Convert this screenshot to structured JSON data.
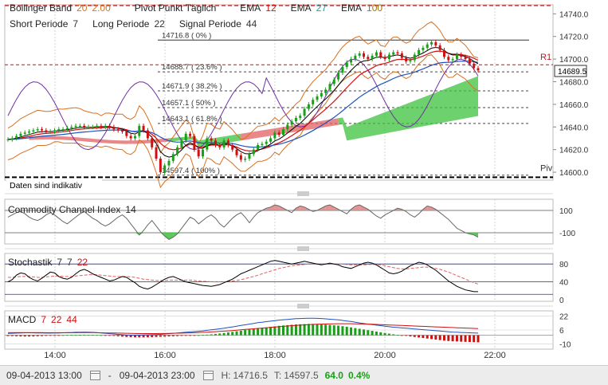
{
  "header": {
    "bollinger": {
      "name": "Bollinger Band",
      "p1": "20",
      "p2": "2.00"
    },
    "pivot": "Pivot Punkt Täglich",
    "ema": [
      {
        "name": "EMA",
        "value": "12"
      },
      {
        "name": "EMA",
        "value": "27"
      },
      {
        "name": "EMA",
        "value": "100"
      }
    ],
    "short": {
      "name": "Short Periode",
      "value": "7"
    },
    "long": {
      "name": "Long Periode",
      "value": "22"
    },
    "signal": {
      "name": "Signal Periode",
      "value": "44"
    }
  },
  "colors": {
    "up": "#18a018",
    "down": "#d01010",
    "bollinger": "#7030a0",
    "ema12": "#d01010",
    "ema27": "#2050c0",
    "ema100": "#d87020",
    "cloud_green": "#3cc23c",
    "cloud_red": "#e06060",
    "cci_up": "#e08080",
    "cci_down": "#40c040"
  },
  "chart_data": [
    {
      "type": "candlestick",
      "name": "price",
      "x_tick_labels": [
        "14:00",
        "16:00",
        "18:00",
        "20:00",
        "22:00"
      ],
      "y_tick_labels": [
        "14740.0",
        "14720.0",
        "14700.0",
        "14680.0",
        "14660.0",
        "14640.0",
        "14620.0",
        "14600.0"
      ],
      "ylim": [
        14593,
        14748
      ],
      "last_price": "14689.5",
      "note": "Daten sind indikativ",
      "pivot_label": "Piv",
      "r1_label": "R1",
      "r1_value": 14695,
      "pivot_value": 14597,
      "fibonacci": [
        {
          "label": "14716.8 ( 0% )",
          "value": 14716.8
        },
        {
          "label": "14688.7 ( 23.6% )",
          "value": 14688.7
        },
        {
          "label": "14671.9 ( 38.2% )",
          "value": 14671.9
        },
        {
          "label": "14657.1 ( 50% )",
          "value": 14657.1
        },
        {
          "label": "14643.1 ( 61.8% )",
          "value": 14643.1
        },
        {
          "label": "14597.4 ( 100% )",
          "value": 14597.4
        }
      ],
      "close": [
        14629,
        14630,
        14632,
        14634,
        14635,
        14636,
        14637,
        14638,
        14637,
        14636,
        14636,
        14637,
        14638,
        14638,
        14639,
        14640,
        14641,
        14641,
        14640,
        14640,
        14640,
        14641,
        14640,
        14641,
        14640,
        14638,
        14637,
        14636,
        14632,
        14630,
        14632,
        14641,
        14637,
        14630,
        14622,
        14612,
        14600,
        14606,
        14610,
        14616,
        14622,
        14628,
        14634,
        14632,
        14620,
        14614,
        14620,
        14630,
        14628,
        14624,
        14622,
        14628,
        14624,
        14620,
        14615,
        14611,
        14612,
        14616,
        14620,
        14624,
        14625,
        14627,
        14630,
        14635,
        14633,
        14638,
        14642,
        14645,
        14648,
        14650,
        14656,
        14660,
        14664,
        14667,
        14670,
        14673,
        14678,
        14682,
        14688,
        14693,
        14697,
        14700,
        14703,
        14705,
        14702,
        14700,
        14703,
        14706,
        14702,
        14700,
        14704,
        14706,
        14705,
        14701,
        14698,
        14699,
        14704,
        14708,
        14710,
        14713,
        14715,
        14712,
        14708,
        14702,
        14699,
        14700,
        14704,
        14702,
        14700,
        14696,
        14692,
        14690
      ],
      "cloud": [
        0,
        0,
        0,
        0,
        0,
        0,
        0,
        0,
        0,
        0,
        0,
        0,
        0,
        0,
        0,
        0,
        0,
        0,
        0,
        0,
        0,
        0,
        0,
        0,
        0,
        0,
        0,
        0,
        0,
        0,
        0,
        0,
        0,
        0,
        0,
        0,
        0,
        0,
        0,
        0,
        0,
        0,
        0,
        0,
        0,
        0,
        0,
        0,
        0,
        0,
        0,
        0,
        0,
        0,
        0,
        0,
        0,
        0,
        0,
        0,
        0,
        0,
        0,
        0,
        0,
        0,
        0,
        0,
        0,
        0,
        0,
        0,
        0,
        0,
        0,
        0,
        0,
        0,
        0,
        0,
        0,
        0,
        0,
        0,
        0,
        0,
        0,
        0,
        0,
        0,
        0,
        0,
        0,
        0,
        0,
        0,
        0,
        0,
        0,
        0,
        0,
        0,
        0,
        0,
        0,
        0,
        0,
        0,
        0,
        0,
        0,
        0
      ]
    },
    {
      "type": "area",
      "name": "Commodity Channel Index",
      "period": "14",
      "y_tick_labels": [
        "100",
        "-100"
      ],
      "ylim": [
        -200,
        200
      ],
      "values": [
        40,
        60,
        80,
        90,
        70,
        40,
        20,
        10,
        30,
        60,
        80,
        60,
        30,
        0,
        -20,
        10,
        40,
        70,
        90,
        60,
        30,
        10,
        -20,
        -40,
        -20,
        10,
        40,
        60,
        30,
        -20,
        -70,
        -120,
        -80,
        -30,
        10,
        -40,
        -90,
        -130,
        -160,
        -140,
        -110,
        -60,
        -10,
        40,
        20,
        -20,
        10,
        40,
        60,
        30,
        -20,
        -50,
        -10,
        30,
        60,
        80,
        40,
        -10,
        40,
        80,
        100,
        120,
        130,
        150,
        140,
        120,
        100,
        80,
        120,
        140,
        130,
        110,
        90,
        100,
        120,
        140,
        150,
        130,
        110,
        90,
        70,
        110,
        140,
        150,
        130,
        110,
        80,
        50,
        30,
        60,
        80,
        100,
        120,
        110,
        90,
        60,
        40,
        70,
        110,
        140,
        130,
        110,
        80,
        50,
        20,
        -20,
        -60,
        -80,
        -100,
        -110,
        -120,
        -140
      ]
    },
    {
      "type": "line",
      "name": "Stochastik",
      "params": [
        "7",
        "7",
        "22"
      ],
      "y_tick_labels": [
        "80",
        "40",
        "0"
      ],
      "ylim": [
        0,
        100
      ],
      "k": [
        40,
        45,
        55,
        60,
        58,
        50,
        45,
        42,
        48,
        55,
        62,
        60,
        52,
        48,
        46,
        50,
        58,
        65,
        68,
        64,
        58,
        54,
        50,
        46,
        42,
        44,
        48,
        52,
        50,
        44,
        38,
        30,
        26,
        24,
        28,
        34,
        40,
        46,
        50,
        52,
        48,
        44,
        40,
        38,
        36,
        34,
        32,
        31,
        30,
        32,
        34,
        38,
        42,
        46,
        52,
        58,
        62,
        66,
        70,
        74,
        78,
        82,
        86,
        88,
        86,
        84,
        82,
        80,
        82,
        84,
        86,
        84,
        82,
        80,
        78,
        80,
        82,
        80,
        78,
        74,
        72,
        70,
        74,
        78,
        82,
        84,
        82,
        78,
        72,
        66,
        60,
        58,
        60,
        64,
        70,
        76,
        80,
        84,
        82,
        78,
        72,
        66,
        58,
        50,
        42,
        36,
        30,
        26,
        22,
        20,
        18,
        18
      ],
      "d": [
        50,
        50,
        51,
        52,
        52,
        52,
        51,
        50,
        50,
        51,
        52,
        53,
        53,
        52,
        52,
        52,
        53,
        54,
        55,
        56,
        56,
        56,
        55,
        54,
        53,
        52,
        52,
        52,
        52,
        51,
        50,
        48,
        46,
        45,
        44,
        43,
        43,
        43,
        44,
        44,
        44,
        44,
        44,
        44,
        43,
        42,
        41,
        41,
        40,
        40,
        40,
        40,
        41,
        42,
        43,
        45,
        47,
        50,
        52,
        55,
        58,
        61,
        64,
        67,
        70,
        72,
        74,
        76,
        77,
        78,
        79,
        80,
        80,
        80,
        80,
        80,
        80,
        80,
        80,
        80,
        79,
        78,
        78,
        78,
        78,
        79,
        79,
        79,
        78,
        76,
        74,
        72,
        70,
        69,
        69,
        70,
        71,
        72,
        73,
        73,
        72,
        70,
        68,
        65,
        62,
        58,
        54,
        50,
        46,
        42,
        38,
        35
      ]
    },
    {
      "type": "bar",
      "name": "MACD",
      "params": [
        "7",
        "22",
        "44"
      ],
      "y_tick_labels": [
        "22",
        "6",
        "-10"
      ],
      "ylim": [
        -16,
        28
      ],
      "hist": [
        -1,
        -1,
        -1.2,
        -1.4,
        -1.5,
        -1.5,
        -1.4,
        -1.2,
        -1,
        -0.8,
        -0.6,
        -0.4,
        -0.2,
        0,
        0.2,
        0.3,
        0.4,
        0.5,
        0.6,
        0.5,
        0.4,
        0.2,
        0,
        -0.2,
        -0.5,
        -0.8,
        -1.2,
        -1.6,
        -2,
        -2.2,
        -2.4,
        -2.5,
        -2.5,
        -2.4,
        -2.2,
        -2,
        -1.8,
        -1.6,
        -1.4,
        -1.2,
        -1,
        -0.8,
        -0.6,
        -0.4,
        -0.2,
        0,
        0.3,
        0.6,
        1,
        1.5,
        2,
        2.6,
        3.2,
        3.8,
        4.5,
        5.2,
        6,
        6.6,
        7.2,
        7.8,
        8.4,
        9,
        9.6,
        10.2,
        10.8,
        11.2,
        11.6,
        12,
        12.4,
        12.6,
        12.8,
        13,
        13,
        12.8,
        12.6,
        12.2,
        11.8,
        11.4,
        11,
        10.4,
        9.8,
        9,
        8.2,
        7.4,
        6.6,
        5.8,
        5,
        4.2,
        3.4,
        2.6,
        1.8,
        1,
        0.4,
        -0.2,
        -0.8,
        -1.4,
        -2,
        -2.6,
        -3.2,
        -3.8,
        -4.4,
        -5,
        -5.6,
        -6.2,
        -6.6,
        -7,
        -7.2,
        -7.4,
        -7.6,
        -7.8,
        -8,
        -8.2
      ],
      "macd": [
        2,
        2.2,
        2.4,
        2.6,
        2.8,
        2.8,
        2.7,
        2.6,
        2.5,
        2.4,
        2.4,
        2.5,
        2.6,
        2.8,
        3,
        3.2,
        3.4,
        3.5,
        3.6,
        3.5,
        3.3,
        3,
        2.6,
        2.2,
        1.8,
        1.4,
        1,
        0.6,
        0.2,
        0,
        0,
        0,
        0.2,
        0.4,
        0.6,
        0.8,
        1,
        1.4,
        1.8,
        2.2,
        2.6,
        3,
        3.4,
        3.8,
        4.2,
        4.6,
        5,
        5.6,
        6.2,
        6.8,
        7.4,
        8,
        8.8,
        9.6,
        10.4,
        11.2,
        12,
        12.8,
        13.6,
        14.4,
        15,
        15.6,
        16.2,
        16.8,
        17.4,
        17.8,
        18.2,
        18.6,
        19,
        19.2,
        19.4,
        19.6,
        19.6,
        19.4,
        19.2,
        18.8,
        18.4,
        18,
        17.6,
        17,
        16.4,
        15.8,
        15,
        14.2,
        13.4,
        12.8,
        12.2,
        11.6,
        11,
        10.4,
        9.8,
        9.2,
        8.8,
        8.4,
        8,
        7.6,
        7.2,
        6.8,
        6.4,
        6,
        5.6,
        5.2,
        4.8,
        4.4,
        4,
        3.6,
        3.4,
        3.2,
        3,
        2.8,
        2.6,
        2.4
      ],
      "signal": [
        3,
        3,
        3,
        3,
        3,
        3,
        3,
        3,
        3,
        2.9,
        2.9,
        2.9,
        2.9,
        2.9,
        2.9,
        2.9,
        2.9,
        3,
        3,
        3,
        3,
        2.9,
        2.8,
        2.7,
        2.6,
        2.5,
        2.4,
        2.3,
        2.2,
        2.1,
        2,
        1.9,
        1.9,
        1.9,
        1.9,
        1.9,
        2,
        2,
        2.1,
        2.2,
        2.3,
        2.4,
        2.5,
        2.7,
        2.9,
        3.1,
        3.3,
        3.5,
        3.8,
        4.1,
        4.4,
        4.7,
        5,
        5.4,
        5.8,
        6.2,
        6.6,
        7,
        7.4,
        7.8,
        8.2,
        8.6,
        9,
        9.4,
        9.8,
        10.2,
        10.6,
        11,
        11.3,
        11.6,
        11.9,
        12.2,
        12.4,
        12.6,
        12.8,
        12.9,
        13,
        13.1,
        13.2,
        13.2,
        13.2,
        13.2,
        13.1,
        13,
        12.9,
        12.8,
        12.6,
        12.4,
        12.2,
        12,
        11.8,
        11.6,
        11.4,
        11.2,
        11,
        10.8,
        10.6,
        10.4,
        10.2,
        10,
        9.8,
        9.6,
        9.4,
        9.2,
        9,
        8.8,
        8.6,
        8.4,
        8.2,
        8,
        7.8,
        7.6
      ]
    }
  ],
  "footer": {
    "from": "09-04-2013 13:00",
    "sep": "-",
    "to": "09-04-2013 23:00",
    "high_label": "H:",
    "high": "14716.5",
    "low_label": "T:",
    "low": "14597.5",
    "change": "64.0",
    "change_pct": "0.4%"
  }
}
